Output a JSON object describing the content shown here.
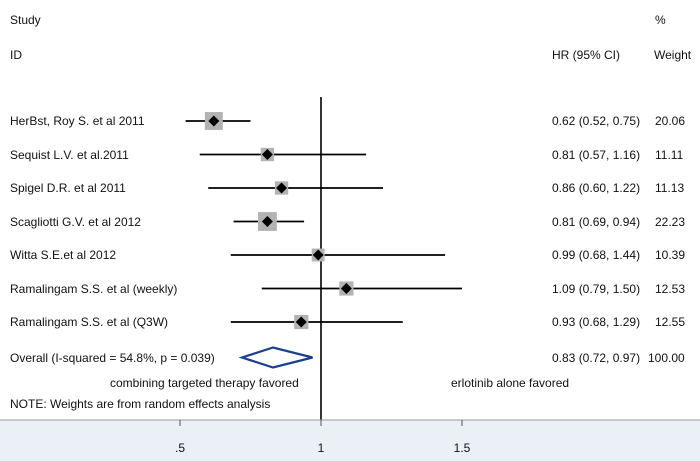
{
  "header": {
    "study_label": "Study",
    "id_label": "ID",
    "hr_label": "HR (95% CI)",
    "pct_label": "%",
    "weight_label": "Weight"
  },
  "footer": {
    "favored_left": "combining targeted therapy favored",
    "favored_right": "erlotinib alone favored",
    "note": "NOTE: Weights are from random effects analysis"
  },
  "colors": {
    "line": "#000000",
    "box": "#b3b3b3",
    "diamond": "#1a3d8f",
    "band": "#eaf0f6"
  },
  "chart_data": {
    "type": "forest",
    "xlim": [
      0.38,
      1.65
    ],
    "reference_line": 1,
    "x_ticks": [
      0.5,
      1,
      1.5
    ],
    "x_tick_labels": [
      ".5",
      "1",
      "1.5"
    ],
    "studies": [
      {
        "id": "HerBst, Roy S. et al 2011",
        "hr": 0.62,
        "lo": 0.52,
        "hi": 0.75,
        "label": "0.62 (0.52, 0.75)",
        "weight": 20.06,
        "weight_label": "20.06"
      },
      {
        "id": "Sequist L.V. et al.2011",
        "hr": 0.81,
        "lo": 0.57,
        "hi": 1.16,
        "label": "0.81 (0.57, 1.16)",
        "weight": 11.11,
        "weight_label": "11.11"
      },
      {
        "id": "Spigel D.R. et al 2011",
        "hr": 0.86,
        "lo": 0.6,
        "hi": 1.22,
        "label": "0.86 (0.60, 1.22)",
        "weight": 11.13,
        "weight_label": "11.13"
      },
      {
        "id": "Scagliotti G.V. et al 2012",
        "hr": 0.81,
        "lo": 0.69,
        "hi": 0.94,
        "label": "0.81 (0.69, 0.94)",
        "weight": 22.23,
        "weight_label": "22.23"
      },
      {
        "id": "Witta S.E.et al 2012",
        "hr": 0.99,
        "lo": 0.68,
        "hi": 1.44,
        "label": "0.99 (0.68, 1.44)",
        "weight": 10.39,
        "weight_label": "10.39"
      },
      {
        "id": "Ramalingam S.S. et al (weekly)",
        "hr": 1.09,
        "lo": 0.79,
        "hi": 1.5,
        "label": "1.09 (0.79, 1.50)",
        "weight": 12.53,
        "weight_label": "12.53"
      },
      {
        "id": "Ramalingam S.S. et al (Q3W)",
        "hr": 0.93,
        "lo": 0.68,
        "hi": 1.29,
        "label": "0.93 (0.68, 1.29)",
        "weight": 12.55,
        "weight_label": "12.55"
      }
    ],
    "overall": {
      "id": "Overall  (I-squared = 54.8%, p = 0.039)",
      "hr": 0.83,
      "lo": 0.72,
      "hi": 0.97,
      "label": "0.83 (0.72, 0.97)",
      "weight_label": "100.00"
    }
  }
}
